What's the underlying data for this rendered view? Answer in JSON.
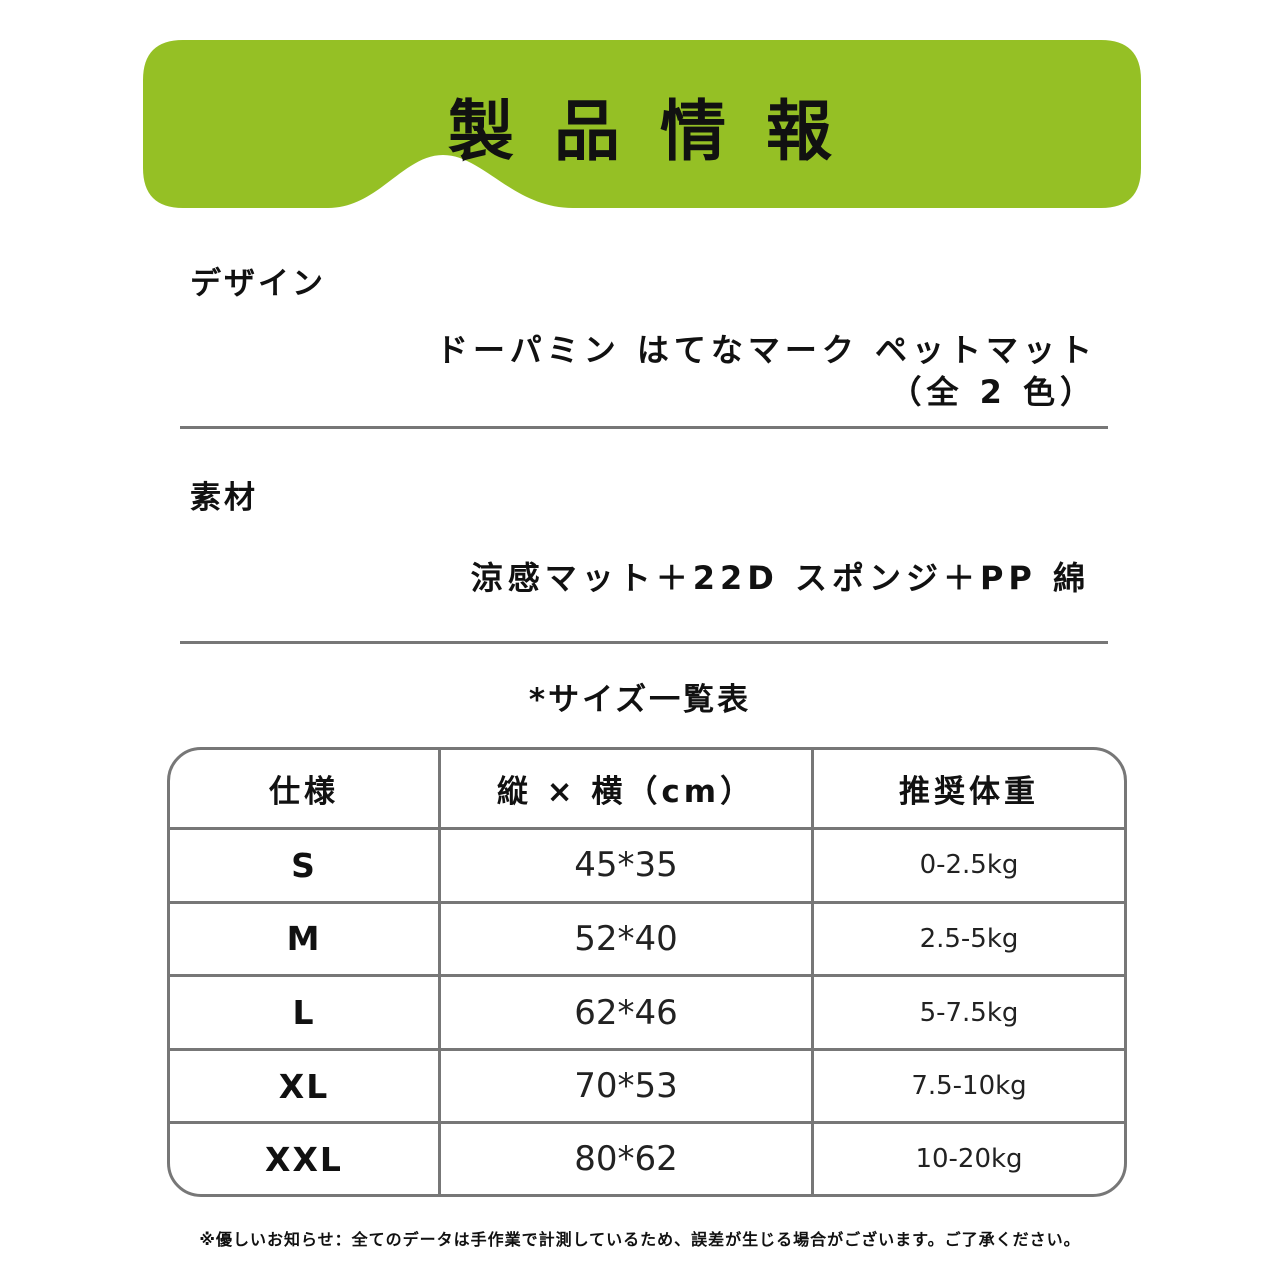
{
  "colors": {
    "banner": "#95c025",
    "rule": "#777777"
  },
  "header": {
    "title": "製品情報"
  },
  "design": {
    "label": "デザイン",
    "value_line1": "ドーパミン はてなマーク ペットマット",
    "value_line2": "（全 2 色）"
  },
  "material": {
    "label": "素材",
    "value": "涼感マット＋22D スポンジ＋PP 綿"
  },
  "size_table": {
    "title": "*サイズ一覧表",
    "headers": [
      "仕様",
      "縦 × 横（cm）",
      "推奨体重"
    ],
    "rows": [
      [
        "S",
        "45*35",
        "0-2.5kg"
      ],
      [
        "M",
        "52*40",
        "2.5-5kg"
      ],
      [
        "L",
        "62*46",
        "5-7.5kg"
      ],
      [
        "XL",
        "70*53",
        "7.5-10kg"
      ],
      [
        "XXL",
        "80*62",
        "10-20kg"
      ]
    ]
  },
  "note": "※優しいお知らせ：全てのデータは手作業で計測しているため、誤差が生じる場合がございます。ご了承ください。"
}
